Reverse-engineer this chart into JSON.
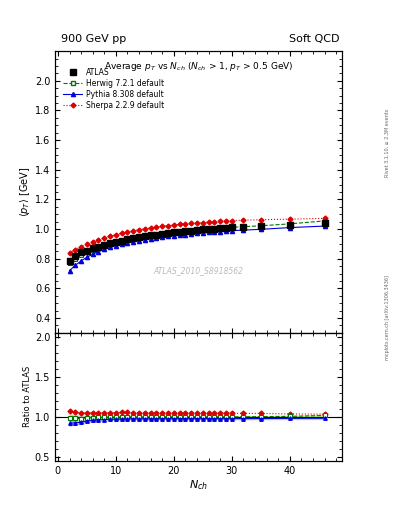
{
  "title_left": "900 GeV pp",
  "title_right": "Soft QCD",
  "plot_title": "Average $p_{T}$ vs $N_{ch}$ ($N_{ch}$ > 1, $p_{T}$ > 0.5 GeV)",
  "ylabel_main": "$\\langle p_{T} \\rangle$ [GeV]",
  "ylabel_ratio": "Ratio to ATLAS",
  "xlabel": "$N_{ch}$",
  "watermark": "ATLAS_2010_S8918562",
  "right_label_bottom": "mcplots.cern.ch [arXiv:1306.3436]",
  "right_label_top": "Rivet 3.1.10, ≥ 2.3M events",
  "ylim_main": [
    0.3,
    2.2
  ],
  "ylim_ratio": [
    0.45,
    2.05
  ],
  "yticks_main": [
    0.4,
    0.6,
    0.8,
    1.0,
    1.2,
    1.4,
    1.6,
    1.8,
    2.0
  ],
  "yticks_ratio": [
    0.5,
    1.0,
    1.5,
    2.0
  ],
  "xlim": [
    -0.5,
    49
  ],
  "xticks": [
    0,
    10,
    20,
    30,
    40
  ],
  "atlas_x": [
    2,
    3,
    4,
    5,
    6,
    7,
    8,
    9,
    10,
    11,
    12,
    13,
    14,
    15,
    16,
    17,
    18,
    19,
    20,
    21,
    22,
    23,
    24,
    25,
    26,
    27,
    28,
    29,
    30,
    32,
    35,
    40,
    46
  ],
  "atlas_y": [
    0.785,
    0.815,
    0.845,
    0.855,
    0.87,
    0.882,
    0.894,
    0.904,
    0.914,
    0.922,
    0.93,
    0.938,
    0.946,
    0.952,
    0.958,
    0.963,
    0.968,
    0.973,
    0.978,
    0.982,
    0.986,
    0.99,
    0.994,
    0.997,
    1.0,
    1.003,
    1.006,
    1.009,
    1.012,
    1.016,
    1.02,
    1.03,
    1.038
  ],
  "atlas_yerr": [
    0.022,
    0.016,
    0.013,
    0.012,
    0.011,
    0.01,
    0.009,
    0.009,
    0.008,
    0.008,
    0.008,
    0.007,
    0.007,
    0.007,
    0.007,
    0.007,
    0.007,
    0.006,
    0.006,
    0.006,
    0.006,
    0.006,
    0.006,
    0.006,
    0.006,
    0.006,
    0.006,
    0.006,
    0.006,
    0.006,
    0.006,
    0.007,
    0.008
  ],
  "herwig_x": [
    2,
    3,
    4,
    5,
    6,
    7,
    8,
    9,
    10,
    11,
    12,
    13,
    14,
    15,
    16,
    17,
    18,
    19,
    20,
    21,
    22,
    23,
    24,
    25,
    26,
    27,
    28,
    29,
    30,
    32,
    35,
    40,
    46
  ],
  "herwig_y": [
    0.77,
    0.8,
    0.825,
    0.845,
    0.862,
    0.876,
    0.889,
    0.9,
    0.91,
    0.919,
    0.928,
    0.936,
    0.943,
    0.95,
    0.956,
    0.962,
    0.967,
    0.972,
    0.977,
    0.981,
    0.985,
    0.989,
    0.993,
    0.996,
    0.999,
    1.002,
    1.005,
    1.008,
    1.011,
    1.016,
    1.022,
    1.035,
    1.055
  ],
  "herwig_yerr": [
    0.014,
    0.011,
    0.009,
    0.008,
    0.008,
    0.007,
    0.007,
    0.006,
    0.006,
    0.006,
    0.006,
    0.005,
    0.005,
    0.005,
    0.005,
    0.005,
    0.005,
    0.005,
    0.005,
    0.005,
    0.004,
    0.004,
    0.004,
    0.004,
    0.004,
    0.004,
    0.004,
    0.004,
    0.004,
    0.004,
    0.004,
    0.005,
    0.006
  ],
  "pythia_x": [
    2,
    3,
    4,
    5,
    6,
    7,
    8,
    9,
    10,
    11,
    12,
    13,
    14,
    15,
    16,
    17,
    18,
    19,
    20,
    21,
    22,
    23,
    24,
    25,
    26,
    27,
    28,
    29,
    30,
    32,
    35,
    40,
    46
  ],
  "pythia_y": [
    0.72,
    0.755,
    0.785,
    0.81,
    0.83,
    0.848,
    0.863,
    0.876,
    0.887,
    0.897,
    0.906,
    0.914,
    0.921,
    0.928,
    0.934,
    0.94,
    0.945,
    0.95,
    0.955,
    0.959,
    0.963,
    0.967,
    0.971,
    0.974,
    0.977,
    0.98,
    0.983,
    0.986,
    0.989,
    0.993,
    0.998,
    1.01,
    1.02
  ],
  "pythia_yerr": [
    0.012,
    0.01,
    0.009,
    0.008,
    0.007,
    0.007,
    0.006,
    0.006,
    0.006,
    0.005,
    0.005,
    0.005,
    0.005,
    0.005,
    0.005,
    0.005,
    0.005,
    0.004,
    0.004,
    0.004,
    0.004,
    0.004,
    0.004,
    0.004,
    0.004,
    0.004,
    0.004,
    0.004,
    0.004,
    0.004,
    0.004,
    0.004,
    0.005
  ],
  "sherpa_x": [
    2,
    3,
    4,
    5,
    6,
    7,
    8,
    9,
    10,
    11,
    12,
    13,
    14,
    15,
    16,
    17,
    18,
    19,
    20,
    21,
    22,
    23,
    24,
    25,
    26,
    27,
    28,
    29,
    30,
    32,
    35,
    40,
    46
  ],
  "sherpa_y": [
    0.84,
    0.862,
    0.88,
    0.898,
    0.913,
    0.928,
    0.94,
    0.952,
    0.962,
    0.972,
    0.98,
    0.988,
    0.995,
    1.002,
    1.008,
    1.013,
    1.018,
    1.023,
    1.027,
    1.031,
    1.035,
    1.038,
    1.041,
    1.044,
    1.047,
    1.049,
    1.052,
    1.054,
    1.057,
    1.06,
    1.063,
    1.067,
    1.072
  ],
  "sherpa_yerr": [
    0.015,
    0.012,
    0.011,
    0.01,
    0.009,
    0.009,
    0.008,
    0.008,
    0.007,
    0.007,
    0.007,
    0.007,
    0.007,
    0.006,
    0.006,
    0.006,
    0.006,
    0.006,
    0.006,
    0.006,
    0.006,
    0.006,
    0.005,
    0.005,
    0.005,
    0.005,
    0.005,
    0.005,
    0.005,
    0.005,
    0.005,
    0.005,
    0.006
  ],
  "atlas_color": "#000000",
  "herwig_color": "#007700",
  "pythia_color": "#0000dd",
  "sherpa_color": "#dd0000",
  "herwig_band_color": "#aaff88",
  "pythia_band_color": "#8888ff",
  "atlas_band_color": "#aaaaaa"
}
